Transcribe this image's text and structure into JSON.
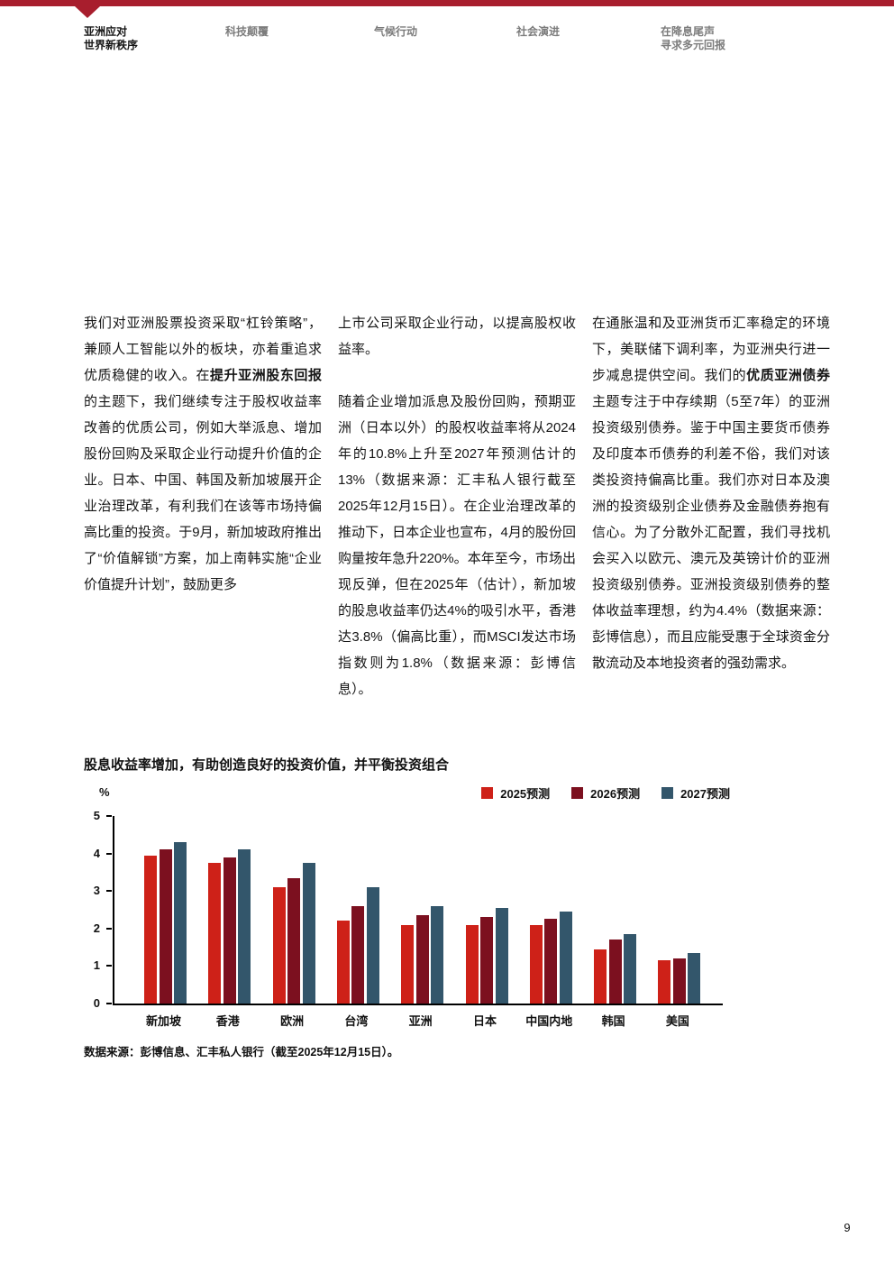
{
  "page": {
    "number": "9"
  },
  "header": {
    "accent_color": "#A81E2D",
    "nav": [
      {
        "lines": [
          "亚洲应对",
          "世界新秩序"
        ],
        "active": true
      },
      {
        "lines": [
          "科技颠覆"
        ],
        "active": false
      },
      {
        "lines": [
          "气候行动"
        ],
        "active": false
      },
      {
        "lines": [
          "社会演进"
        ],
        "active": false
      },
      {
        "lines": [
          "在降息尾声",
          "寻求多元回报"
        ],
        "active": false
      }
    ]
  },
  "article": {
    "columns": [
      {
        "paragraphs": [
          [
            {
              "text": "我们对亚洲股票投资采取“杠铃策略”，兼顾人工智能以外的板块，亦着重追求优质稳健的收入。在",
              "bold": false
            },
            {
              "text": "提升亚洲股东回报",
              "bold": true
            },
            {
              "text": "的主题下，我们继续专注于股权收益率改善的优质公司，例如大举派息、增加股份回购及采取企业行动提升价值的企业。日本、中国、韩国及新加坡展开企业治理改革，有利我们在该等市场持偏高比重的投资。于9月，新加坡政府推出了“价值解锁”方案，加上南韩实施“企业价值提升计划”，鼓励更多",
              "bold": false
            }
          ]
        ]
      },
      {
        "paragraphs": [
          [
            {
              "text": "上市公司采取企业行动，以提高股权收益率。",
              "bold": false
            }
          ],
          [
            {
              "text": "随着企业增加派息及股份回购，预期亚洲（日本以外）的股权收益率将从2024年的10.8%上升至2027年预测估计的13%（数据来源：汇丰私人银行截至2025年12月15日）。在企业治理改革的推动下，日本企业也宣布，4月的股份回购量按年急升220%。本年至今，市场出现反弹，但在2025年（估计），新加坡的股息收益率仍达4%的吸引水平，香港达3.8%（偏高比重），而MSCI发达市场指数则为1.8%（数据来源：彭博信息）。",
              "bold": false
            }
          ]
        ]
      },
      {
        "paragraphs": [
          [
            {
              "text": "在通胀温和及亚洲货币汇率稳定的环境下，美联储下调利率，为亚洲央行进一步减息提供空间。我们的",
              "bold": false
            },
            {
              "text": "优质亚洲债券",
              "bold": true
            },
            {
              "text": "主题专注于中存续期（5至7年）的亚洲投资级别债券。鉴于中国主要货币债券及印度本币债券的利差不俗，我们对该类投资持偏高比重。我们亦对日本及澳洲的投资级别企业债券及金融债券抱有信心。为了分散外汇配置，我们寻找机会买入以欧元、澳元及英镑计价的亚洲投资级别债券。亚洲投资级别债券的整体收益率理想，约为4.4%（数据来源：彭博信息），而且应能受惠于全球资金分散流动及本地投资者的强劲需求。",
              "bold": false
            }
          ]
        ]
      }
    ]
  },
  "chart_data": {
    "type": "bar",
    "title": "股息收益率增加，有助创造良好的投资价值，并平衡投资组合",
    "ylabel": "%",
    "ylim": [
      0,
      5
    ],
    "yticks": [
      5,
      4,
      3,
      2,
      1,
      0
    ],
    "grid": false,
    "legend_position": "top-right",
    "categories": [
      "新加坡",
      "香港",
      "欧洲",
      "台湾",
      "亚洲",
      "日本",
      "中国内地",
      "韩国",
      "美国"
    ],
    "series": [
      {
        "name": "2025预测",
        "color": "#CE2118",
        "values": [
          3.95,
          3.75,
          3.1,
          2.2,
          2.1,
          2.1,
          2.1,
          1.45,
          1.15
        ]
      },
      {
        "name": "2026预测",
        "color": "#7C101F",
        "values": [
          4.1,
          3.9,
          3.35,
          2.6,
          2.35,
          2.3,
          2.25,
          1.7,
          1.2
        ]
      },
      {
        "name": "2027预测",
        "color": "#33566B",
        "values": [
          4.3,
          4.1,
          3.75,
          3.1,
          2.6,
          2.55,
          2.45,
          1.85,
          1.35
        ]
      }
    ]
  },
  "source_note": "数据来源：彭博信息、汇丰私人银行（截至2025年12月15日）。"
}
